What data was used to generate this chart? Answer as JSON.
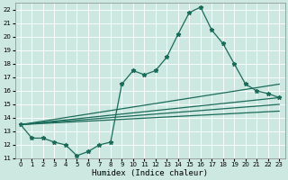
{
  "title": "",
  "xlabel": "Humidex (Indice chaleur)",
  "ylabel": "",
  "background_color": "#cce8e0",
  "grid_color": "#b8d8d0",
  "line_color": "#1a6b5a",
  "xlim": [
    -0.5,
    23.5
  ],
  "ylim": [
    11,
    22.5
  ],
  "yticks": [
    11,
    12,
    13,
    14,
    15,
    16,
    17,
    18,
    19,
    20,
    21,
    22
  ],
  "xticks": [
    0,
    1,
    2,
    3,
    4,
    5,
    6,
    7,
    8,
    9,
    10,
    11,
    12,
    13,
    14,
    15,
    16,
    17,
    18,
    19,
    20,
    21,
    22,
    23
  ],
  "main_x": [
    0,
    1,
    2,
    3,
    4,
    5,
    6,
    7,
    8,
    9,
    10,
    11,
    12,
    13,
    14,
    15,
    16,
    17,
    18,
    19,
    20,
    21,
    22,
    23
  ],
  "main_y": [
    13.5,
    12.5,
    12.5,
    12.2,
    12.0,
    11.2,
    11.5,
    12.0,
    12.2,
    16.5,
    17.5,
    17.2,
    17.5,
    18.5,
    20.2,
    21.8,
    22.2,
    20.5,
    19.5,
    18.0,
    16.5,
    16.0,
    15.8,
    15.5
  ],
  "straight_lines": [
    {
      "x0": 0,
      "y0": 13.5,
      "x1": 23,
      "y1": 16.5
    },
    {
      "x0": 0,
      "y0": 13.5,
      "x1": 23,
      "y1": 15.5
    },
    {
      "x0": 0,
      "y0": 13.5,
      "x1": 23,
      "y1": 15.0
    },
    {
      "x0": 0,
      "y0": 13.5,
      "x1": 23,
      "y1": 14.5
    }
  ],
  "marker": "*",
  "markersize": 3.5,
  "linewidth": 0.9,
  "tick_fontsize": 5,
  "xlabel_fontsize": 6.5
}
